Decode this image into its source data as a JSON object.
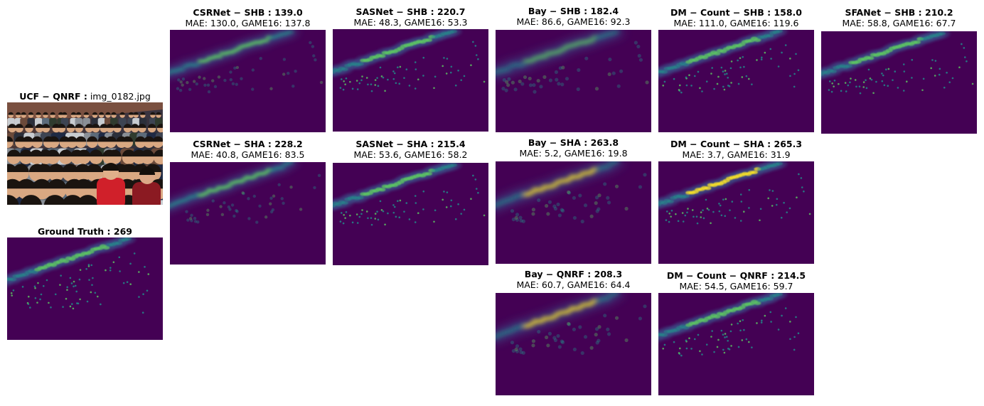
{
  "photo": {
    "title_bold": "UCF − QNRF :",
    "title_normal": "img_0182.jpg"
  },
  "ground_truth": {
    "title_bold": "Ground Truth : 269"
  },
  "colors": {
    "density_bg": "#440154",
    "density_low": "#3b528b",
    "density_mid": "#21918c",
    "density_high": "#5ec962",
    "density_peak": "#fde725"
  },
  "panels": [
    {
      "id": "csrnet-shb",
      "title": "CSRNet − SHB : 139.0",
      "metrics": "MAE: 130.0, GAME16: 137.8"
    },
    {
      "id": "sasnet-shb",
      "title": "SASNet − SHB : 220.7",
      "metrics": "MAE: 48.3, GAME16: 53.3"
    },
    {
      "id": "bay-shb",
      "title": "Bay − SHB : 182.4",
      "metrics": "MAE: 86.6, GAME16: 92.3"
    },
    {
      "id": "dmcount-shb",
      "title": "DM − Count − SHB : 158.0",
      "metrics": "MAE: 111.0, GAME16: 119.6"
    },
    {
      "id": "sfanet-shb",
      "title": "SFANet − SHB : 210.2",
      "metrics": "MAE: 58.8, GAME16: 67.7"
    },
    {
      "id": "csrnet-sha",
      "title": "CSRNet − SHA : 228.2",
      "metrics": "MAE: 40.8, GAME16: 83.5"
    },
    {
      "id": "sasnet-sha",
      "title": "SASNet − SHA : 215.4",
      "metrics": "MAE: 53.6, GAME16: 58.2"
    },
    {
      "id": "bay-sha",
      "title": "Bay − SHA : 263.8",
      "metrics": "MAE: 5.2, GAME16: 19.8"
    },
    {
      "id": "dmcount-sha",
      "title": "DM − Count − SHA : 265.3",
      "metrics": "MAE: 3.7, GAME16: 31.9"
    },
    {
      "id": "bay-qnrf",
      "title": "Bay − QNRF : 208.3",
      "metrics": "MAE: 60.7, GAME16: 64.4"
    },
    {
      "id": "dmcount-qnrf",
      "title": "DM − Count − QNRF : 214.5",
      "metrics": "MAE: 54.5, GAME16: 59.7"
    }
  ]
}
